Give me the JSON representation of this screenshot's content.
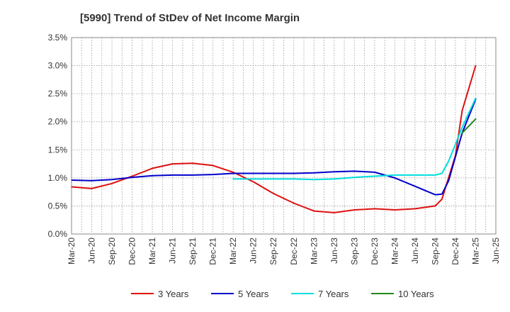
{
  "chart_data": {
    "type": "line",
    "title": "[5990]  Trend of StDev of Net Income Margin",
    "xlabel": "",
    "ylabel": "",
    "x_ticks": [
      "Mar-20",
      "Jun-20",
      "Sep-20",
      "Dec-20",
      "Mar-21",
      "Jun-21",
      "Sep-21",
      "Dec-21",
      "Mar-22",
      "Jun-22",
      "Sep-22",
      "Dec-22",
      "Mar-23",
      "Jun-23",
      "Sep-23",
      "Dec-23",
      "Mar-24",
      "Jun-24",
      "Sep-24",
      "Dec-24",
      "Mar-25",
      "Jun-25"
    ],
    "y_ticks": [
      "0.0%",
      "0.5%",
      "1.0%",
      "1.5%",
      "2.0%",
      "2.5%",
      "3.0%",
      "3.5%"
    ],
    "ylim": [
      0,
      3.5
    ],
    "grid": true,
    "legend_position": "bottom",
    "series": [
      {
        "name": "3 Years",
        "color": "#dd1111",
        "x": [
          "Mar-20",
          "Jun-20",
          "Sep-20",
          "Dec-20",
          "Mar-21",
          "Jun-21",
          "Sep-21",
          "Dec-21",
          "Mar-22",
          "Jun-22",
          "Sep-22",
          "Dec-22",
          "Mar-23",
          "Jun-23",
          "Sep-23",
          "Dec-23",
          "Mar-24",
          "Jun-24",
          "Sep-24",
          "Oct-24",
          "Dec-24",
          "Jan-25",
          "Mar-25"
        ],
        "values": [
          0.84,
          0.81,
          0.9,
          1.03,
          1.17,
          1.25,
          1.26,
          1.22,
          1.1,
          0.93,
          0.72,
          0.55,
          0.41,
          0.38,
          0.43,
          0.45,
          0.43,
          0.45,
          0.5,
          0.62,
          1.4,
          2.2,
          3.0
        ]
      },
      {
        "name": "5 Years",
        "color": "#0000cc",
        "x": [
          "Mar-20",
          "Jun-20",
          "Sep-20",
          "Dec-20",
          "Mar-21",
          "Jun-21",
          "Sep-21",
          "Dec-21",
          "Mar-22",
          "Jun-22",
          "Sep-22",
          "Dec-22",
          "Mar-23",
          "Jun-23",
          "Sep-23",
          "Dec-23",
          "Mar-24",
          "Jun-24",
          "Sep-24",
          "Oct-24",
          "Nov-24",
          "Jan-25",
          "Mar-25"
        ],
        "values": [
          0.96,
          0.95,
          0.97,
          1.01,
          1.04,
          1.05,
          1.05,
          1.06,
          1.08,
          1.08,
          1.08,
          1.08,
          1.09,
          1.11,
          1.12,
          1.1,
          1.0,
          0.85,
          0.7,
          0.71,
          0.95,
          1.8,
          2.4
        ]
      },
      {
        "name": "7 Years",
        "color": "#00dddd",
        "x": [
          "Mar-22",
          "Jun-22",
          "Sep-22",
          "Dec-22",
          "Mar-23",
          "Jun-23",
          "Sep-23",
          "Dec-23",
          "Mar-24",
          "Jun-24",
          "Sep-24",
          "Oct-24",
          "Nov-24",
          "Jan-25",
          "Mar-25"
        ],
        "values": [
          0.98,
          0.98,
          0.98,
          0.98,
          0.97,
          0.98,
          1.01,
          1.03,
          1.05,
          1.05,
          1.05,
          1.08,
          1.3,
          1.9,
          2.42
        ]
      },
      {
        "name": "10 Years",
        "color": "#228822",
        "x": [
          "Jan-25",
          "Mar-25"
        ],
        "values": [
          1.8,
          2.05
        ]
      }
    ]
  }
}
